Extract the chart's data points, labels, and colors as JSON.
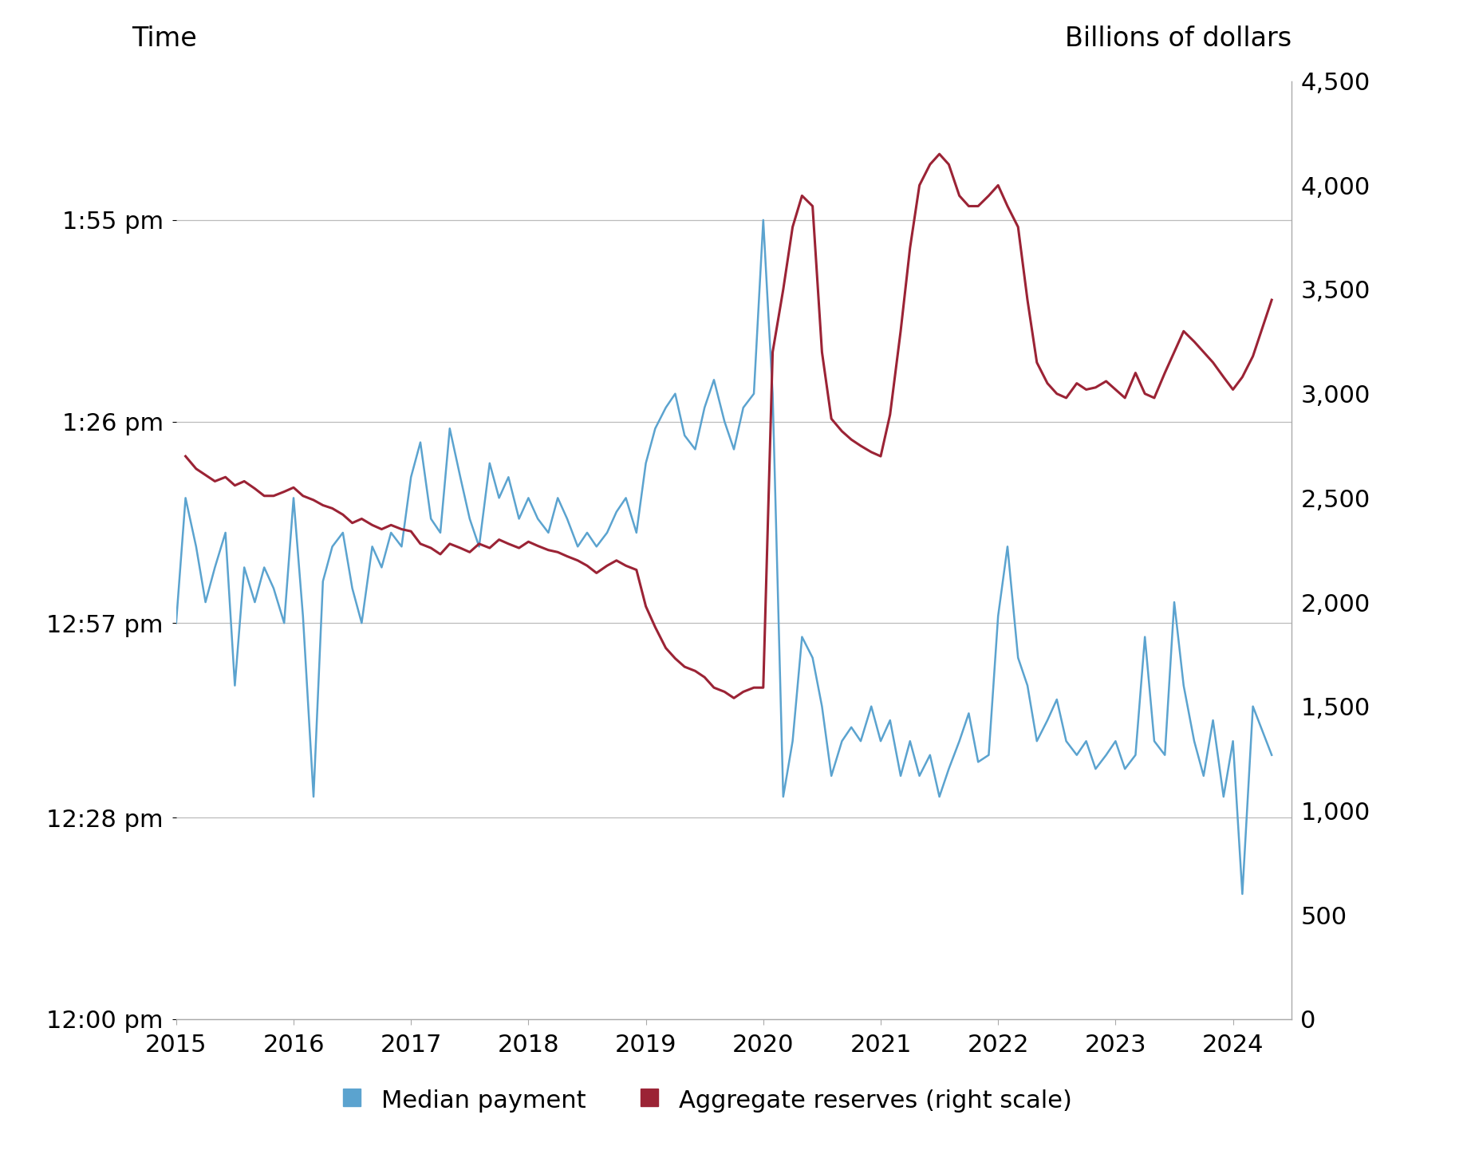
{
  "title_left": "Time",
  "title_right": "Billions of dollars",
  "left_yticks": [
    0,
    29,
    57,
    86,
    115
  ],
  "left_yticklabels": [
    "12:00 pm",
    "12:28 pm",
    "12:57 pm",
    "1:26 pm",
    "1:55 pm"
  ],
  "left_ylim": [
    0,
    135
  ],
  "right_yticks": [
    0,
    500,
    1000,
    1500,
    2000,
    2500,
    3000,
    3500,
    4000,
    4500
  ],
  "right_ylim": [
    0,
    4500
  ],
  "xlim_start": 2015.0,
  "xlim_end": 2024.5,
  "xticks": [
    2015,
    2016,
    2017,
    2018,
    2019,
    2020,
    2021,
    2022,
    2023,
    2024
  ],
  "blue_color": "#5BA3CF",
  "red_color": "#9B2335",
  "grid_color": "#BBBBBB",
  "legend_blue": "Median payment",
  "legend_red": "Aggregate reserves (right scale)",
  "blue_x": [
    2015.0,
    2015.08,
    2015.17,
    2015.25,
    2015.33,
    2015.42,
    2015.5,
    2015.58,
    2015.67,
    2015.75,
    2015.83,
    2015.92,
    2016.0,
    2016.08,
    2016.17,
    2016.25,
    2016.33,
    2016.42,
    2016.5,
    2016.58,
    2016.67,
    2016.75,
    2016.83,
    2016.92,
    2017.0,
    2017.08,
    2017.17,
    2017.25,
    2017.33,
    2017.42,
    2017.5,
    2017.58,
    2017.67,
    2017.75,
    2017.83,
    2017.92,
    2018.0,
    2018.08,
    2018.17,
    2018.25,
    2018.33,
    2018.42,
    2018.5,
    2018.58,
    2018.67,
    2018.75,
    2018.83,
    2018.92,
    2019.0,
    2019.08,
    2019.17,
    2019.25,
    2019.33,
    2019.42,
    2019.5,
    2019.58,
    2019.67,
    2019.75,
    2019.83,
    2019.92,
    2020.0,
    2020.08,
    2020.17,
    2020.25,
    2020.33,
    2020.42,
    2020.5,
    2020.58,
    2020.67,
    2020.75,
    2020.83,
    2020.92,
    2021.0,
    2021.08,
    2021.17,
    2021.25,
    2021.33,
    2021.42,
    2021.5,
    2021.58,
    2021.67,
    2021.75,
    2021.83,
    2021.92,
    2022.0,
    2022.08,
    2022.17,
    2022.25,
    2022.33,
    2022.42,
    2022.5,
    2022.58,
    2022.67,
    2022.75,
    2022.83,
    2022.92,
    2023.0,
    2023.08,
    2023.17,
    2023.25,
    2023.33,
    2023.42,
    2023.5,
    2023.58,
    2023.67,
    2023.75,
    2023.83,
    2023.92,
    2024.0,
    2024.08,
    2024.17,
    2024.33
  ],
  "blue_y": [
    57,
    75,
    68,
    60,
    65,
    70,
    48,
    65,
    60,
    65,
    62,
    57,
    75,
    58,
    32,
    63,
    68,
    70,
    62,
    57,
    68,
    65,
    70,
    68,
    78,
    83,
    72,
    70,
    85,
    78,
    72,
    68,
    80,
    75,
    78,
    72,
    75,
    72,
    70,
    75,
    72,
    68,
    70,
    68,
    70,
    73,
    75,
    70,
    80,
    85,
    88,
    90,
    84,
    82,
    88,
    92,
    86,
    82,
    88,
    90,
    115,
    90,
    32,
    40,
    55,
    52,
    45,
    35,
    40,
    42,
    40,
    45,
    40,
    43,
    35,
    40,
    35,
    38,
    32,
    36,
    40,
    44,
    37,
    38,
    58,
    68,
    52,
    48,
    40,
    43,
    46,
    40,
    38,
    40,
    36,
    38,
    40,
    36,
    38,
    55,
    40,
    38,
    60,
    48,
    40,
    35,
    43,
    32,
    40,
    18,
    45,
    38
  ],
  "red_x": [
    2015.08,
    2015.17,
    2015.25,
    2015.33,
    2015.42,
    2015.5,
    2015.58,
    2015.67,
    2015.75,
    2015.83,
    2015.92,
    2016.0,
    2016.08,
    2016.17,
    2016.25,
    2016.33,
    2016.42,
    2016.5,
    2016.58,
    2016.67,
    2016.75,
    2016.83,
    2016.92,
    2017.0,
    2017.08,
    2017.17,
    2017.25,
    2017.33,
    2017.42,
    2017.5,
    2017.58,
    2017.67,
    2017.75,
    2017.83,
    2017.92,
    2018.0,
    2018.08,
    2018.17,
    2018.25,
    2018.33,
    2018.42,
    2018.5,
    2018.58,
    2018.67,
    2018.75,
    2018.83,
    2018.92,
    2019.0,
    2019.08,
    2019.17,
    2019.25,
    2019.33,
    2019.42,
    2019.5,
    2019.58,
    2019.67,
    2019.75,
    2019.83,
    2019.92,
    2020.0,
    2020.08,
    2020.17,
    2020.25,
    2020.33,
    2020.42,
    2020.5,
    2020.58,
    2020.67,
    2020.75,
    2020.83,
    2020.92,
    2021.0,
    2021.08,
    2021.17,
    2021.25,
    2021.33,
    2021.42,
    2021.5,
    2021.58,
    2021.67,
    2021.75,
    2021.83,
    2021.92,
    2022.0,
    2022.08,
    2022.17,
    2022.25,
    2022.33,
    2022.42,
    2022.5,
    2022.58,
    2022.67,
    2022.75,
    2022.83,
    2022.92,
    2023.0,
    2023.08,
    2023.17,
    2023.25,
    2023.33,
    2023.42,
    2023.5,
    2023.58,
    2023.67,
    2023.75,
    2023.83,
    2023.92,
    2024.0,
    2024.08,
    2024.17,
    2024.33
  ],
  "red_y": [
    2700,
    2640,
    2610,
    2580,
    2600,
    2560,
    2580,
    2545,
    2510,
    2510,
    2530,
    2550,
    2510,
    2490,
    2465,
    2450,
    2420,
    2380,
    2400,
    2370,
    2350,
    2370,
    2350,
    2340,
    2280,
    2260,
    2230,
    2280,
    2260,
    2240,
    2280,
    2260,
    2300,
    2280,
    2260,
    2290,
    2270,
    2250,
    2240,
    2220,
    2200,
    2175,
    2140,
    2175,
    2200,
    2175,
    2155,
    1980,
    1880,
    1780,
    1730,
    1690,
    1670,
    1640,
    1590,
    1570,
    1540,
    1570,
    1590,
    1590,
    3200,
    3500,
    3800,
    3950,
    3900,
    3200,
    2880,
    2820,
    2780,
    2750,
    2720,
    2700,
    2900,
    3300,
    3700,
    4000,
    4100,
    4150,
    4100,
    3950,
    3900,
    3900,
    3950,
    4000,
    3900,
    3800,
    3450,
    3150,
    3050,
    3000,
    2980,
    3050,
    3020,
    3030,
    3060,
    3020,
    2980,
    3100,
    3000,
    2980,
    3100,
    3200,
    3300,
    3250,
    3200,
    3150,
    3080,
    3020,
    3080,
    3180,
    3450
  ]
}
